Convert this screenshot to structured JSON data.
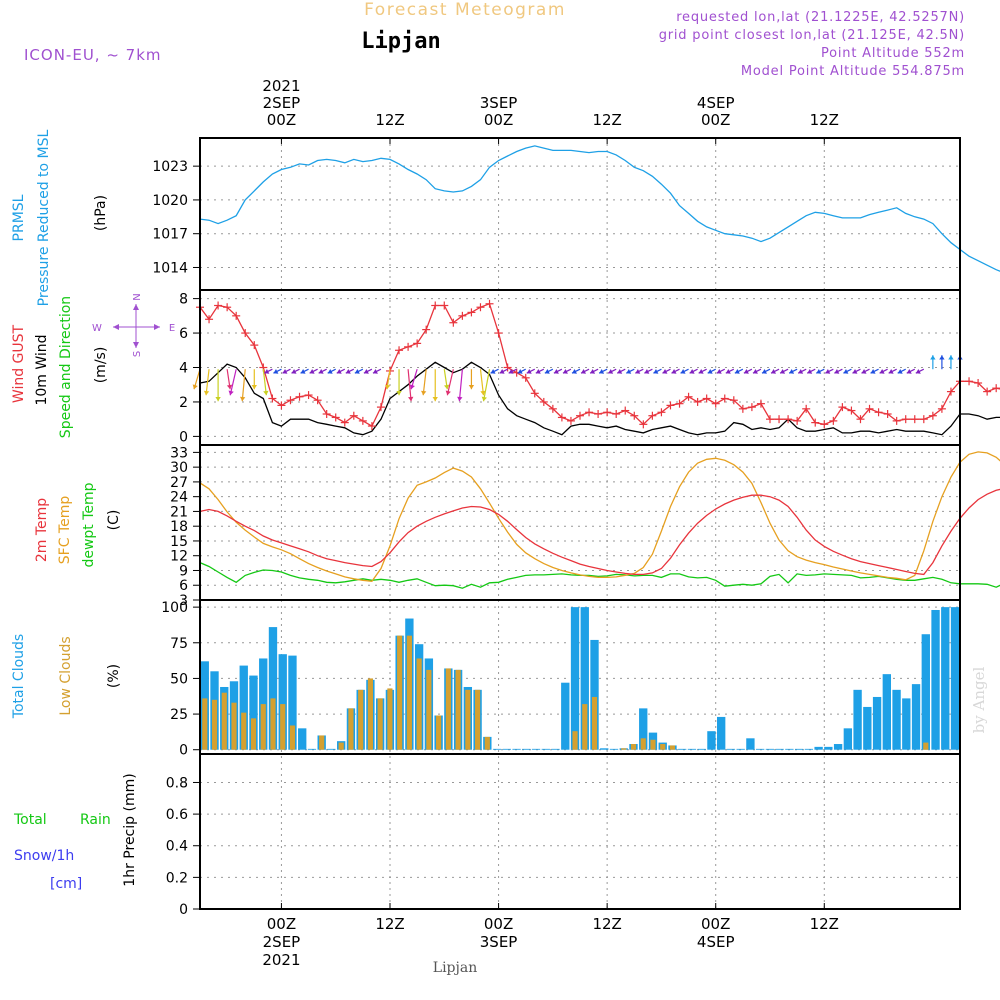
{
  "header": {
    "title": "Forecast Meteogram",
    "location": "Lipjan",
    "model": "ICON-EU, ~ 7km",
    "requested": "requested lon,lat (21.1225E, 42.5257N)",
    "grid_point": "grid point closest lon,lat (21.125E, 42.5N)",
    "point_altitude": "Point Altitude 552m",
    "model_altitude": "Model Point Altitude 554.875m",
    "footer_location": "Lipjan",
    "watermark": "by Angel"
  },
  "time_axis": {
    "top_labels": [
      {
        "lines": [
          "2021",
          "2SEP",
          "00Z"
        ]
      },
      {
        "lines": [
          "12Z"
        ]
      },
      {
        "lines": [
          "3SEP",
          "00Z"
        ]
      },
      {
        "lines": [
          "12Z"
        ]
      },
      {
        "lines": [
          "4SEP",
          "00Z"
        ]
      },
      {
        "lines": [
          "12Z"
        ]
      }
    ],
    "bottom_labels": [
      {
        "lines": [
          "00Z",
          "2SEP",
          "2021"
        ]
      },
      {
        "lines": [
          "12Z"
        ]
      },
      {
        "lines": [
          "00Z",
          "3SEP"
        ]
      },
      {
        "lines": [
          "12Z"
        ]
      },
      {
        "lines": [
          "00Z",
          "4SEP"
        ]
      },
      {
        "lines": [
          "12Z"
        ]
      }
    ],
    "start": "2021-09-01T15Z",
    "end": "2021-09-05T03Z",
    "step_hours": 1
  },
  "panels": {
    "pressure": {
      "label_lines": [
        "PRMSL",
        "Pressure Reduced to MSL"
      ],
      "unit": "(hPa)",
      "ticks": [
        "1014",
        "1017",
        "1020",
        "1023"
      ]
    },
    "wind": {
      "label_gust": "Wind GUST",
      "label_wind": "10m Wind",
      "label_dir": "Speed and Direction",
      "unit": "(m/s)",
      "ticks": [
        "0",
        "2",
        "4",
        "6",
        "8"
      ],
      "compass": {
        "n": "N",
        "s": "S",
        "e": "E",
        "w": "W"
      }
    },
    "temp": {
      "label_t2m": "2m Temp",
      "label_sfc": "SFC Temp",
      "label_dew": "dewpt Temp",
      "unit": "(C)",
      "ticks": [
        "3",
        "6",
        "9",
        "12",
        "15",
        "18",
        "21",
        "24",
        "27",
        "30",
        "33"
      ]
    },
    "clouds": {
      "label_total": "Total Clouds",
      "label_low": "Low Clouds",
      "unit": "(%)",
      "ticks": [
        "0",
        "25",
        "50",
        "75",
        "100"
      ]
    },
    "precip": {
      "label_total": "Total",
      "label_rain": "Rain",
      "label_snow": "Snow/1h",
      "label_cm": "[cm]",
      "unit": "1hr Precip (mm)",
      "ticks": [
        "0",
        "0.2",
        "0.4",
        "0.6",
        "0.8"
      ]
    }
  },
  "colors": {
    "pressure": "#1ea0e6",
    "gust": "#e8343c",
    "wind": "#000000",
    "t2m": "#e8343c",
    "sfc": "#e6a020",
    "dew": "#14c814",
    "total_clouds": "#1ea0e6",
    "low_clouds": "#d4a030",
    "title": "#f0c880",
    "purple": "#a050d0",
    "snow": "#3c3cf0"
  },
  "chart_data": [
    {
      "type": "line",
      "name": "PRMSL",
      "ylabel": "Pressure Reduced to MSL (hPa)",
      "ylim": [
        1012,
        1025.5
      ],
      "x_start": "2021-09-01T15Z",
      "x_step_hours": 1,
      "series": [
        {
          "name": "PRMSL",
          "values": [
            1018.3,
            1018.2,
            1017.9,
            1018.2,
            1018.6,
            1020.0,
            1020.8,
            1021.6,
            1022.3,
            1022.7,
            1022.9,
            1023.2,
            1023.1,
            1023.5,
            1023.6,
            1023.5,
            1023.3,
            1023.6,
            1023.4,
            1023.5,
            1023.7,
            1023.6,
            1023.2,
            1022.7,
            1022.3,
            1021.8,
            1021.0,
            1020.8,
            1020.7,
            1020.8,
            1021.2,
            1021.8,
            1022.9,
            1023.5,
            1023.9,
            1024.3,
            1024.6,
            1024.8,
            1024.6,
            1024.4,
            1024.4,
            1024.4,
            1024.3,
            1024.2,
            1024.3,
            1024.3,
            1024.0,
            1023.5,
            1022.9,
            1022.6,
            1022.1,
            1021.4,
            1020.6,
            1019.5,
            1018.8,
            1018.1,
            1017.6,
            1017.3,
            1017.0,
            1016.9,
            1016.8,
            1016.6,
            1016.3,
            1016.6,
            1017.1,
            1017.6,
            1018.1,
            1018.6,
            1018.9,
            1018.8,
            1018.6,
            1018.4,
            1018.4,
            1018.4,
            1018.7,
            1018.9,
            1019.1,
            1019.3,
            1018.8,
            1018.5,
            1018.3,
            1017.9,
            1017.0,
            1016.2,
            1015.6,
            1015.0,
            1014.6,
            1014.2,
            1013.8,
            1013.5,
            1013.3,
            1013.2
          ]
        }
      ]
    },
    {
      "type": "line",
      "name": "Wind",
      "ylabel": "(m/s)",
      "ylim": [
        -0.5,
        8.5
      ],
      "x_start": "2021-09-01T15Z",
      "x_step_hours": 1,
      "series": [
        {
          "name": "Wind GUST",
          "values": [
            7.5,
            6.8,
            7.6,
            7.5,
            7.0,
            6.0,
            5.3,
            4.0,
            2.2,
            1.8,
            2.1,
            2.3,
            2.4,
            2.1,
            1.3,
            1.1,
            0.8,
            1.2,
            0.9,
            0.6,
            1.7,
            3.8,
            5.0,
            5.2,
            5.4,
            6.2,
            7.6,
            7.6,
            6.6,
            7.0,
            7.2,
            7.5,
            7.7,
            6.0,
            4.0,
            3.7,
            3.4,
            2.5,
            2.0,
            1.6,
            1.1,
            0.9,
            1.2,
            1.4,
            1.3,
            1.4,
            1.3,
            1.5,
            1.2,
            0.7,
            1.2,
            1.4,
            1.8,
            1.9,
            2.3,
            2.0,
            2.2,
            1.9,
            2.2,
            2.1,
            1.6,
            1.7,
            1.9,
            1.0,
            1.0,
            1.0,
            0.9,
            1.6,
            0.8,
            0.7,
            0.9,
            1.7,
            1.5,
            1.0,
            1.6,
            1.4,
            1.3,
            0.9,
            1.0,
            1.0,
            1.0,
            1.2,
            1.6,
            2.6,
            3.2,
            3.2,
            3.1,
            2.6,
            2.8,
            2.7,
            2.9,
            2.5,
            2.0
          ]
        },
        {
          "name": "10m Wind",
          "values": [
            3.1,
            3.2,
            3.7,
            4.2,
            4.0,
            3.4,
            2.5,
            2.2,
            0.8,
            0.6,
            1.0,
            1.0,
            1.0,
            0.8,
            0.7,
            0.6,
            0.5,
            0.2,
            0.1,
            0.3,
            1.0,
            2.2,
            2.6,
            3.0,
            3.5,
            3.9,
            4.3,
            4.0,
            3.7,
            3.9,
            4.3,
            4.0,
            3.6,
            2.4,
            1.6,
            1.2,
            1.0,
            0.8,
            0.5,
            0.3,
            0.1,
            0.6,
            0.7,
            0.7,
            0.6,
            0.5,
            0.6,
            0.4,
            0.3,
            0.2,
            0.4,
            0.5,
            0.6,
            0.4,
            0.2,
            0.1,
            0.2,
            0.2,
            0.3,
            0.8,
            0.7,
            0.4,
            0.5,
            0.4,
            0.5,
            1.0,
            0.5,
            0.3,
            0.3,
            0.4,
            0.5,
            0.2,
            0.2,
            0.3,
            0.3,
            0.2,
            0.3,
            0.4,
            0.3,
            0.3,
            0.3,
            0.2,
            0.1,
            0.6,
            1.3,
            1.3,
            1.2,
            1.0,
            1.1,
            1.1,
            1.2,
            1.1,
            1.0
          ]
        }
      ]
    },
    {
      "type": "line",
      "name": "Temperature",
      "ylabel": "(C)",
      "ylim": [
        3,
        34.5
      ],
      "x_start": "2021-09-01T15Z",
      "x_step_hours": 1,
      "series": [
        {
          "name": "2m Temp",
          "values": [
            21.0,
            21.4,
            21.0,
            20.1,
            19.0,
            18.0,
            17.1,
            16.0,
            15.2,
            14.6,
            14.0,
            13.4,
            12.8,
            12.0,
            11.4,
            11.0,
            10.6,
            10.3,
            10.0,
            9.8,
            10.8,
            12.6,
            14.8,
            16.7,
            18.0,
            19.0,
            19.8,
            20.5,
            21.1,
            21.7,
            22.0,
            21.9,
            21.4,
            20.4,
            19.0,
            17.3,
            15.7,
            14.4,
            13.4,
            12.5,
            11.7,
            11.0,
            10.3,
            9.8,
            9.4,
            9.0,
            8.7,
            8.4,
            8.2,
            8.2,
            8.5,
            9.4,
            11.5,
            14.2,
            16.6,
            18.6,
            20.2,
            21.5,
            22.5,
            23.3,
            23.9,
            24.3,
            24.3,
            24.0,
            23.3,
            22.0,
            19.8,
            17.2,
            15.2,
            13.9,
            12.9,
            12.1,
            11.4,
            10.8,
            10.4,
            10.0,
            9.6,
            9.2,
            8.8,
            8.4,
            8.2,
            10.6,
            14.0,
            17.0,
            19.6,
            21.7,
            23.4,
            24.5,
            25.3,
            25.7,
            25.7,
            25.3,
            24.7,
            23.8,
            22.3
          ]
        },
        {
          "name": "SFC Temp",
          "values": [
            26.8,
            25.6,
            23.4,
            20.9,
            18.8,
            17.2,
            15.8,
            14.5,
            13.8,
            13.2,
            12.4,
            11.4,
            10.4,
            9.6,
            8.9,
            8.3,
            7.7,
            7.3,
            7.0,
            6.8,
            9.4,
            14.0,
            19.5,
            23.7,
            26.3,
            27.0,
            27.8,
            28.9,
            29.8,
            29.2,
            28.0,
            25.6,
            22.7,
            19.6,
            16.8,
            14.3,
            12.6,
            11.4,
            10.4,
            9.6,
            9.0,
            8.5,
            8.1,
            7.8,
            7.6,
            7.6,
            7.7,
            8.0,
            8.4,
            9.6,
            12.3,
            17.0,
            22.0,
            26.0,
            29.0,
            30.8,
            31.6,
            31.8,
            31.4,
            30.5,
            29.0,
            26.7,
            22.8,
            18.6,
            15.2,
            13.0,
            11.8,
            11.1,
            10.6,
            10.2,
            9.7,
            9.3,
            8.9,
            8.5,
            8.2,
            7.9,
            7.6,
            7.4,
            7.1,
            8.0,
            13.0,
            19.0,
            24.0,
            28.0,
            31.0,
            32.6,
            33.1,
            32.9,
            32.0,
            30.4,
            28.2,
            25.5,
            21.8
          ]
        },
        {
          "name": "dewpt Temp",
          "values": [
            10.6,
            9.8,
            8.7,
            7.6,
            6.6,
            8.0,
            8.6,
            9.1,
            9.0,
            8.7,
            8.0,
            7.5,
            7.2,
            7.0,
            6.6,
            6.5,
            6.7,
            7.0,
            7.3,
            7.0,
            7.2,
            7.0,
            6.6,
            7.0,
            7.3,
            6.6,
            5.9,
            6.0,
            5.9,
            5.4,
            6.2,
            5.6,
            6.5,
            6.6,
            7.2,
            7.6,
            8.0,
            8.1,
            8.1,
            8.2,
            8.3,
            8.1,
            8.0,
            8.0,
            7.8,
            7.9,
            8.2,
            8.1,
            7.9,
            8.0,
            8.0,
            7.6,
            8.3,
            8.3,
            7.7,
            7.5,
            7.6,
            7.0,
            5.8,
            6.0,
            6.2,
            6.0,
            6.3,
            7.8,
            8.2,
            6.5,
            8.3,
            8.0,
            8.1,
            8.3,
            8.2,
            8.1,
            8.0,
            7.5,
            7.6,
            7.8,
            7.5,
            7.2,
            7.0,
            7.0,
            7.3,
            7.6,
            7.2,
            6.5,
            6.3,
            6.3,
            6.3,
            6.2,
            5.6,
            6.5,
            7.6,
            6.3,
            6.5,
            5.4,
            7.0
          ]
        }
      ]
    },
    {
      "type": "bar",
      "name": "Clouds",
      "ylabel": "(%)",
      "ylim": [
        -3,
        105
      ],
      "x_start": "2021-09-01T15Z",
      "x_step_hours": 1,
      "series": [
        {
          "name": "Total Clouds",
          "values": [
            62,
            55,
            44,
            48,
            59,
            52,
            64,
            86,
            67,
            66,
            15,
            0,
            10,
            0,
            6,
            29,
            42,
            49,
            36,
            42,
            80,
            92,
            74,
            64,
            24,
            57,
            56,
            44,
            42,
            9,
            0,
            0,
            0,
            0,
            0,
            0,
            0,
            47,
            100,
            100,
            77,
            1,
            0,
            1,
            4,
            29,
            12,
            5,
            3,
            0,
            0,
            0,
            13,
            23,
            0,
            0,
            8,
            0,
            0,
            0,
            0,
            0,
            0,
            2,
            2,
            4,
            15,
            42,
            30,
            37,
            53,
            42,
            36,
            46,
            81,
            98,
            100,
            100
          ]
        },
        {
          "name": "Low Clouds",
          "values": [
            36,
            35,
            40,
            33,
            26,
            22,
            32,
            36,
            32,
            17,
            0,
            0,
            10,
            0,
            5,
            29,
            42,
            50,
            36,
            43,
            80,
            80,
            64,
            56,
            24,
            57,
            56,
            42,
            42,
            9,
            0,
            0,
            0,
            0,
            0,
            0,
            0,
            0,
            13,
            32,
            37,
            0,
            0,
            1,
            4,
            8,
            7,
            4,
            3,
            0,
            0,
            0,
            0,
            0,
            0,
            0,
            0,
            0,
            0,
            0,
            0,
            0,
            0,
            0,
            0,
            0,
            0,
            0,
            0,
            0,
            0,
            0,
            0,
            0,
            5,
            0,
            0,
            0
          ]
        }
      ]
    },
    {
      "type": "bar",
      "name": "Precipitation",
      "ylabel": "1hr Precip (mm)",
      "ylim": [
        0,
        0.98
      ],
      "x_start": "2021-09-01T15Z",
      "x_step_hours": 1,
      "series": [
        {
          "name": "Total Rain",
          "values": [
            0,
            0,
            0,
            0,
            0,
            0,
            0,
            0,
            0,
            0,
            0,
            0,
            0,
            0,
            0,
            0,
            0,
            0,
            0,
            0,
            0,
            0,
            0,
            0,
            0,
            0,
            0,
            0,
            0,
            0,
            0,
            0,
            0,
            0,
            0,
            0,
            0,
            0,
            0,
            0,
            0,
            0,
            0,
            0,
            0,
            0,
            0,
            0,
            0,
            0,
            0,
            0,
            0,
            0,
            0,
            0,
            0,
            0,
            0,
            0,
            0,
            0,
            0,
            0,
            0,
            0,
            0,
            0,
            0,
            0,
            0,
            0,
            0,
            0,
            0,
            0,
            0,
            0,
            0,
            0,
            0,
            0,
            0,
            0,
            0,
            0,
            0,
            0,
            0,
            0,
            0,
            0,
            0
          ]
        }
      ]
    }
  ]
}
